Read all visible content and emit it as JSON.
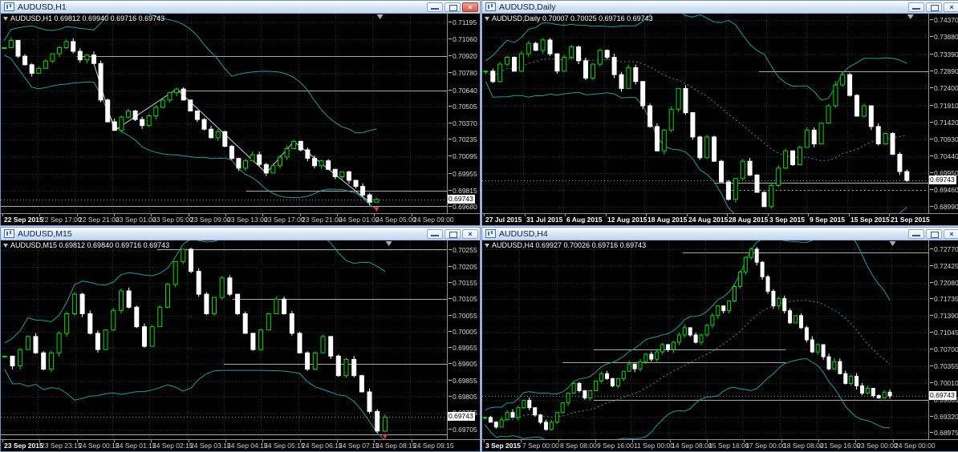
{
  "colors": {
    "bull": "#00dd00",
    "bear": "#ffffff",
    "band": "#1f9e9e",
    "zigzag": "#d6dbe0",
    "grid": "#2d2d2d",
    "level": "#a9a9a9",
    "arrow": "#ff3232",
    "plot_bg": "#000000",
    "axis_text": "#d8d8d8",
    "tag_bg": "#ffffff",
    "tag_text": "#000000",
    "bid_line": "#8f8f8f"
  },
  "icons": {
    "close_glyph": "×",
    "minimize_icon": "minimize-bar",
    "restore_icon": "restore-box",
    "chart_icon": "candlestick-chart",
    "shift_marker": "down-triangle",
    "ohlc_marker": "down-triangle"
  },
  "windows": [
    {
      "title": "AUDUSD,H1",
      "ohlc_label": "AUDUSD,H1 0.69812 0.69940 0.69716 0.69743",
      "price_tag": "0.69743",
      "active": true
    },
    {
      "title": "AUDUSD,Daily",
      "ohlc_label": "AUDUSD,Daily 0.70007 0.70025 0.69716 0.69743",
      "price_tag": "0.69743",
      "active": false
    },
    {
      "title": "AUDUSD,M15",
      "ohlc_label": "AUDUSD,M15 0.69812 0.69840 0.69716 0.69743",
      "price_tag": "0.69743",
      "active": false
    },
    {
      "title": "AUDUSD,H4",
      "ohlc_label": "AUDUSD,H4 0.69927 0.70026 0.69716 0.69743",
      "price_tag": "0.69743",
      "active": false
    }
  ],
  "chart_data": [
    {
      "type": "candlestick",
      "symbol": "AUDUSD",
      "timeframe": "H1",
      "ohlc": {
        "open": 0.69812,
        "high": 0.6994,
        "low": 0.69716,
        "close": 0.69743
      },
      "close_price": 0.69743,
      "ylim": [
        0.6963,
        0.7127
      ],
      "ytick_labels": [
        "0.71195",
        "0.71060",
        "0.70920",
        "0.70780",
        "0.70640",
        "0.70505",
        "0.70370",
        "0.70235",
        "0.70095",
        "0.69955",
        "0.69815",
        "0.69680"
      ],
      "xtick_labels": [
        "22 Sep 2015",
        "22 Sep 17:00",
        "22 Sep 21:00",
        "23 Sep 01:00",
        "23 Sep 05:00",
        "23 Sep 09:00",
        "23 Sep 13:00",
        "23 Sep 17:00",
        "23 Sep 21:00",
        "24 Sep 01:00",
        "24 Sep 05:00",
        "24 Sep 09:00"
      ],
      "closes": [
        0.7099,
        0.7105,
        0.7092,
        0.7085,
        0.7078,
        0.7082,
        0.7088,
        0.7094,
        0.7099,
        0.7104,
        0.7096,
        0.7089,
        0.7093,
        0.7086,
        0.7056,
        0.7038,
        0.7031,
        0.7042,
        0.7047,
        0.704,
        0.7035,
        0.7043,
        0.705,
        0.7056,
        0.7062,
        0.7065,
        0.7056,
        0.7047,
        0.704,
        0.7032,
        0.7025,
        0.703,
        0.7018,
        0.7008,
        0.7,
        0.7006,
        0.7011,
        0.7003,
        0.6996,
        0.7002,
        0.7009,
        0.7016,
        0.7022,
        0.7015,
        0.7008,
        0.7002,
        0.7006,
        0.6999,
        0.6993,
        0.6997,
        0.699,
        0.6985,
        0.6978,
        0.6972,
        0.69743
      ],
      "levels": [
        {
          "value": 0.7092,
          "x1": 0.17,
          "x2": 1
        },
        {
          "value": 0.7064,
          "x1": 0.4,
          "x2": 1
        },
        {
          "value": 0.69815,
          "x1": 0.55,
          "x2": 1
        },
        {
          "value": 0.6969,
          "x1": 0,
          "x2": 1
        }
      ],
      "right_gap": 0.15,
      "band_pad": 0.0006,
      "mid_band": false,
      "sell_arrow": true
    },
    {
      "type": "candlestick",
      "symbol": "AUDUSD",
      "timeframe": "Daily",
      "ohlc": {
        "open": 0.70007,
        "high": 0.70025,
        "low": 0.69716,
        "close": 0.69743
      },
      "close_price": 0.69743,
      "ylim": [
        0.688,
        0.7456
      ],
      "ytick_labels": [
        "0.74370",
        "0.73880",
        "0.73390",
        "0.72890",
        "0.72400",
        "0.71910",
        "0.71420",
        "0.70930",
        "0.70440",
        "0.69950",
        "0.69460",
        "0.68990"
      ],
      "xtick_labels": [
        "27 Jul 2015",
        "31 Jul 2015",
        "6 Aug 2015",
        "12 Aug 2015",
        "18 Aug 2015",
        "24 Aug 2015",
        "28 Aug 2015",
        "3 Sep 2015",
        "9 Sep 2015",
        "15 Sep 2015",
        "21 Sep 2015"
      ],
      "closes": [
        0.729,
        0.726,
        0.731,
        0.733,
        0.729,
        0.734,
        0.737,
        0.735,
        0.738,
        0.734,
        0.729,
        0.733,
        0.736,
        0.732,
        0.727,
        0.731,
        0.735,
        0.733,
        0.728,
        0.724,
        0.73,
        0.726,
        0.719,
        0.713,
        0.706,
        0.712,
        0.718,
        0.724,
        0.717,
        0.71,
        0.704,
        0.71,
        0.703,
        0.697,
        0.692,
        0.698,
        0.703,
        0.699,
        0.694,
        0.6899,
        0.696,
        0.701,
        0.706,
        0.702,
        0.707,
        0.712,
        0.708,
        0.714,
        0.719,
        0.725,
        0.728,
        0.722,
        0.716,
        0.719,
        0.713,
        0.708,
        0.711,
        0.705,
        0.7,
        0.69743
      ],
      "levels": [
        {
          "value": 0.7289,
          "x1": 0.62,
          "x2": 1
        },
        {
          "value": 0.6946,
          "x1": 0.55,
          "x2": 1,
          "dotted": true
        },
        {
          "value": 0.6969,
          "x1": 0.52,
          "x2": 1
        }
      ],
      "right_gap": 0.04,
      "band_pad": 0.003,
      "mid_band": true,
      "sell_arrow": false
    },
    {
      "type": "candlestick",
      "symbol": "AUDUSD",
      "timeframe": "M15",
      "ohlc": {
        "open": 0.69812,
        "high": 0.6984,
        "low": 0.69716,
        "close": 0.69743
      },
      "close_price": 0.69743,
      "ylim": [
        0.69675,
        0.70285
      ],
      "ytick_labels": [
        "0.70255",
        "0.70205",
        "0.70155",
        "0.70105",
        "0.70055",
        "0.70005",
        "0.69955",
        "0.69905",
        "0.69855",
        "0.69805",
        "0.69755",
        "0.69705"
      ],
      "xtick_labels": [
        "23 Sep 2015",
        "23 Sep 23:15",
        "24 Sep 00:15",
        "24 Sep 01:15",
        "24 Sep 02:15",
        "24 Sep 03:15",
        "24 Sep 04:15",
        "24 Sep 05:15",
        "24 Sep 06:15",
        "24 Sep 07:15",
        "24 Sep 08:15",
        "24 Sep 09:15"
      ],
      "closes": [
        0.6993,
        0.699,
        0.6995,
        0.6999,
        0.6994,
        0.6989,
        0.6994,
        0.7,
        0.7006,
        0.7012,
        0.7006,
        0.7,
        0.6995,
        0.7001,
        0.7007,
        0.7013,
        0.7008,
        0.7002,
        0.6996,
        0.7002,
        0.7008,
        0.7015,
        0.7022,
        0.70258,
        0.7019,
        0.7012,
        0.7006,
        0.7011,
        0.7017,
        0.7012,
        0.7006,
        0.7,
        0.6995,
        0.7001,
        0.7006,
        0.70105,
        0.7006,
        0.7,
        0.6994,
        0.6989,
        0.6994,
        0.6999,
        0.6993,
        0.6987,
        0.6992,
        0.6987,
        0.6982,
        0.6976,
        0.697,
        0.69743
      ],
      "levels": [
        {
          "value": 0.70258,
          "x1": 0.35,
          "x2": 1
        },
        {
          "value": 0.70105,
          "x1": 0.52,
          "x2": 1
        },
        {
          "value": 0.69905,
          "x1": 0.5,
          "x2": 1
        },
        {
          "value": 0.6969,
          "x1": 0,
          "x2": 1
        }
      ],
      "right_gap": 0.13,
      "band_pad": 0.0004,
      "mid_band": false,
      "sell_arrow": true
    },
    {
      "type": "candlestick",
      "symbol": "AUDUSD",
      "timeframe": "H4",
      "ohlc": {
        "open": 0.69927,
        "high": 0.70026,
        "low": 0.69716,
        "close": 0.69743
      },
      "close_price": 0.69743,
      "ylim": [
        0.6885,
        0.7295
      ],
      "ytick_labels": [
        "0.72770",
        "0.72425",
        "0.72080",
        "0.71735",
        "0.71390",
        "0.71045",
        "0.70700",
        "0.70355",
        "0.70010",
        "0.69665",
        "0.69320",
        "0.68975"
      ],
      "xtick_labels": [
        "3 Sep 2015",
        "7 Sep 00:00",
        "8 Sep 08:00",
        "9 Sep 16:00",
        "11 Sep 00:00",
        "14 Sep 08:00",
        "15 Sep 16:00",
        "17 Sep 00:00",
        "18 Sep 08:00",
        "21 Sep 16:00",
        "23 Sep 00:00",
        "24 Sep 00:00"
      ],
      "closes": [
        0.693,
        0.692,
        0.691,
        0.6925,
        0.694,
        0.693,
        0.695,
        0.6965,
        0.695,
        0.6935,
        0.692,
        0.6905,
        0.692,
        0.694,
        0.696,
        0.698,
        0.7,
        0.6985,
        0.697,
        0.6985,
        0.7005,
        0.702,
        0.701,
        0.6995,
        0.701,
        0.7025,
        0.704,
        0.703,
        0.7045,
        0.706,
        0.705,
        0.7065,
        0.708,
        0.707,
        0.7085,
        0.71,
        0.7115,
        0.71,
        0.7085,
        0.71,
        0.712,
        0.714,
        0.716,
        0.715,
        0.717,
        0.72,
        0.723,
        0.726,
        0.7277,
        0.725,
        0.722,
        0.719,
        0.716,
        0.7175,
        0.715,
        0.7125,
        0.714,
        0.7115,
        0.709,
        0.7065,
        0.708,
        0.7055,
        0.703,
        0.7045,
        0.702,
        0.7,
        0.7015,
        0.6995,
        0.698,
        0.699,
        0.6975,
        0.697,
        0.6982,
        0.69743
      ],
      "levels": [
        {
          "value": 0.727,
          "x1": 0.45,
          "x2": 1
        },
        {
          "value": 0.707,
          "x1": 0.25,
          "x2": 0.68
        },
        {
          "value": 0.7044,
          "x1": 0.18,
          "x2": 0.68
        },
        {
          "value": 0.69665,
          "x1": 0.25,
          "x2": 1
        }
      ],
      "right_gap": 0.08,
      "band_pad": 0.0015,
      "mid_band": true,
      "sell_arrow": false
    }
  ]
}
